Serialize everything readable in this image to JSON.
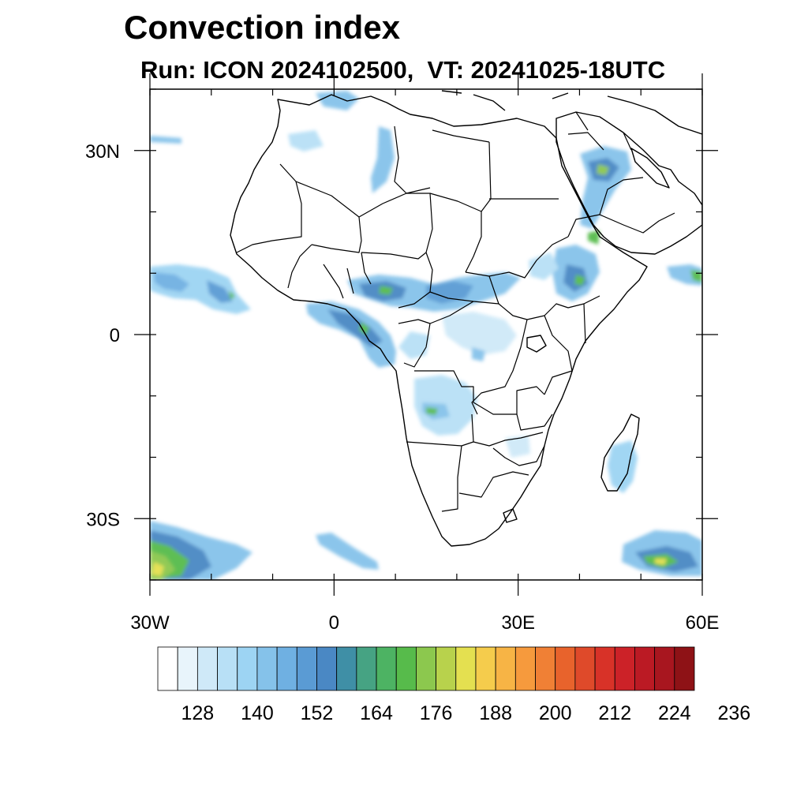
{
  "title": "Convection index",
  "subtitle": "Run: ICON 2024102500,  VT: 20241025-18UTC",
  "map": {
    "lon_range": [
      -30,
      60
    ],
    "lat_range": [
      -40,
      40
    ],
    "lat_ticks": [
      {
        "value": 30,
        "label": "30N"
      },
      {
        "value": 0,
        "label": "0"
      },
      {
        "value": -30,
        "label": "30S"
      }
    ],
    "lon_ticks": [
      {
        "value": -30,
        "label": "30W"
      },
      {
        "value": 0,
        "label": "0"
      },
      {
        "value": 30,
        "label": "30E"
      },
      {
        "value": 60,
        "label": "60E"
      }
    ]
  },
  "colorbar": {
    "labels": [
      "128",
      "140",
      "152",
      "164",
      "176",
      "188",
      "200",
      "212",
      "224",
      "236"
    ],
    "colors": [
      "#ffffff",
      "#e8f4fb",
      "#cfe9f8",
      "#b8e0f6",
      "#9dd4f3",
      "#85c2ea",
      "#6fb0e2",
      "#5a9bd4",
      "#4a88c4",
      "#3f8fa6",
      "#46a383",
      "#4db363",
      "#57bb4b",
      "#8cc84e",
      "#b8d24c",
      "#e4e050",
      "#f5cc4c",
      "#f7b445",
      "#f69a3d",
      "#f08035",
      "#e8632c",
      "#df4a2a",
      "#d83228",
      "#cc2228",
      "#bb1a24",
      "#a8161f",
      "#8e1216"
    ]
  }
}
